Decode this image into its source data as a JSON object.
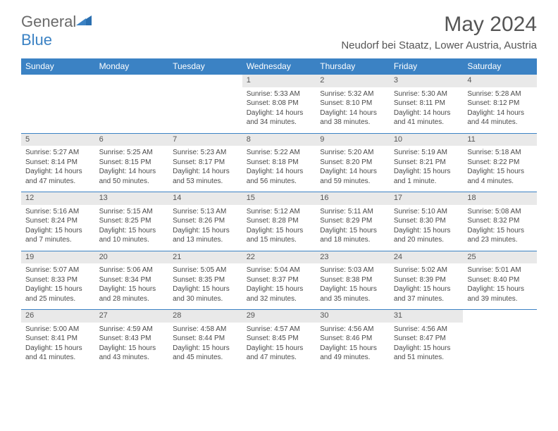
{
  "logo": {
    "text_a": "General",
    "text_b": "Blue"
  },
  "title": "May 2024",
  "location": "Neudorf bei Staatz, Lower Austria, Austria",
  "header_color": "#3b82c4",
  "daynum_bg": "#e9e9e9",
  "text_color": "#4a4a4a",
  "weekdays": [
    "Sunday",
    "Monday",
    "Tuesday",
    "Wednesday",
    "Thursday",
    "Friday",
    "Saturday"
  ],
  "weeks": [
    {
      "nums": [
        "",
        "",
        "",
        "1",
        "2",
        "3",
        "4"
      ],
      "cells": [
        null,
        null,
        null,
        {
          "sunrise": "Sunrise: 5:33 AM",
          "sunset": "Sunset: 8:08 PM",
          "dl1": "Daylight: 14 hours",
          "dl2": "and 34 minutes."
        },
        {
          "sunrise": "Sunrise: 5:32 AM",
          "sunset": "Sunset: 8:10 PM",
          "dl1": "Daylight: 14 hours",
          "dl2": "and 38 minutes."
        },
        {
          "sunrise": "Sunrise: 5:30 AM",
          "sunset": "Sunset: 8:11 PM",
          "dl1": "Daylight: 14 hours",
          "dl2": "and 41 minutes."
        },
        {
          "sunrise": "Sunrise: 5:28 AM",
          "sunset": "Sunset: 8:12 PM",
          "dl1": "Daylight: 14 hours",
          "dl2": "and 44 minutes."
        }
      ]
    },
    {
      "nums": [
        "5",
        "6",
        "7",
        "8",
        "9",
        "10",
        "11"
      ],
      "cells": [
        {
          "sunrise": "Sunrise: 5:27 AM",
          "sunset": "Sunset: 8:14 PM",
          "dl1": "Daylight: 14 hours",
          "dl2": "and 47 minutes."
        },
        {
          "sunrise": "Sunrise: 5:25 AM",
          "sunset": "Sunset: 8:15 PM",
          "dl1": "Daylight: 14 hours",
          "dl2": "and 50 minutes."
        },
        {
          "sunrise": "Sunrise: 5:23 AM",
          "sunset": "Sunset: 8:17 PM",
          "dl1": "Daylight: 14 hours",
          "dl2": "and 53 minutes."
        },
        {
          "sunrise": "Sunrise: 5:22 AM",
          "sunset": "Sunset: 8:18 PM",
          "dl1": "Daylight: 14 hours",
          "dl2": "and 56 minutes."
        },
        {
          "sunrise": "Sunrise: 5:20 AM",
          "sunset": "Sunset: 8:20 PM",
          "dl1": "Daylight: 14 hours",
          "dl2": "and 59 minutes."
        },
        {
          "sunrise": "Sunrise: 5:19 AM",
          "sunset": "Sunset: 8:21 PM",
          "dl1": "Daylight: 15 hours",
          "dl2": "and 1 minute."
        },
        {
          "sunrise": "Sunrise: 5:18 AM",
          "sunset": "Sunset: 8:22 PM",
          "dl1": "Daylight: 15 hours",
          "dl2": "and 4 minutes."
        }
      ]
    },
    {
      "nums": [
        "12",
        "13",
        "14",
        "15",
        "16",
        "17",
        "18"
      ],
      "cells": [
        {
          "sunrise": "Sunrise: 5:16 AM",
          "sunset": "Sunset: 8:24 PM",
          "dl1": "Daylight: 15 hours",
          "dl2": "and 7 minutes."
        },
        {
          "sunrise": "Sunrise: 5:15 AM",
          "sunset": "Sunset: 8:25 PM",
          "dl1": "Daylight: 15 hours",
          "dl2": "and 10 minutes."
        },
        {
          "sunrise": "Sunrise: 5:13 AM",
          "sunset": "Sunset: 8:26 PM",
          "dl1": "Daylight: 15 hours",
          "dl2": "and 13 minutes."
        },
        {
          "sunrise": "Sunrise: 5:12 AM",
          "sunset": "Sunset: 8:28 PM",
          "dl1": "Daylight: 15 hours",
          "dl2": "and 15 minutes."
        },
        {
          "sunrise": "Sunrise: 5:11 AM",
          "sunset": "Sunset: 8:29 PM",
          "dl1": "Daylight: 15 hours",
          "dl2": "and 18 minutes."
        },
        {
          "sunrise": "Sunrise: 5:10 AM",
          "sunset": "Sunset: 8:30 PM",
          "dl1": "Daylight: 15 hours",
          "dl2": "and 20 minutes."
        },
        {
          "sunrise": "Sunrise: 5:08 AM",
          "sunset": "Sunset: 8:32 PM",
          "dl1": "Daylight: 15 hours",
          "dl2": "and 23 minutes."
        }
      ]
    },
    {
      "nums": [
        "19",
        "20",
        "21",
        "22",
        "23",
        "24",
        "25"
      ],
      "cells": [
        {
          "sunrise": "Sunrise: 5:07 AM",
          "sunset": "Sunset: 8:33 PM",
          "dl1": "Daylight: 15 hours",
          "dl2": "and 25 minutes."
        },
        {
          "sunrise": "Sunrise: 5:06 AM",
          "sunset": "Sunset: 8:34 PM",
          "dl1": "Daylight: 15 hours",
          "dl2": "and 28 minutes."
        },
        {
          "sunrise": "Sunrise: 5:05 AM",
          "sunset": "Sunset: 8:35 PM",
          "dl1": "Daylight: 15 hours",
          "dl2": "and 30 minutes."
        },
        {
          "sunrise": "Sunrise: 5:04 AM",
          "sunset": "Sunset: 8:37 PM",
          "dl1": "Daylight: 15 hours",
          "dl2": "and 32 minutes."
        },
        {
          "sunrise": "Sunrise: 5:03 AM",
          "sunset": "Sunset: 8:38 PM",
          "dl1": "Daylight: 15 hours",
          "dl2": "and 35 minutes."
        },
        {
          "sunrise": "Sunrise: 5:02 AM",
          "sunset": "Sunset: 8:39 PM",
          "dl1": "Daylight: 15 hours",
          "dl2": "and 37 minutes."
        },
        {
          "sunrise": "Sunrise: 5:01 AM",
          "sunset": "Sunset: 8:40 PM",
          "dl1": "Daylight: 15 hours",
          "dl2": "and 39 minutes."
        }
      ]
    },
    {
      "nums": [
        "26",
        "27",
        "28",
        "29",
        "30",
        "31",
        ""
      ],
      "cells": [
        {
          "sunrise": "Sunrise: 5:00 AM",
          "sunset": "Sunset: 8:41 PM",
          "dl1": "Daylight: 15 hours",
          "dl2": "and 41 minutes."
        },
        {
          "sunrise": "Sunrise: 4:59 AM",
          "sunset": "Sunset: 8:43 PM",
          "dl1": "Daylight: 15 hours",
          "dl2": "and 43 minutes."
        },
        {
          "sunrise": "Sunrise: 4:58 AM",
          "sunset": "Sunset: 8:44 PM",
          "dl1": "Daylight: 15 hours",
          "dl2": "and 45 minutes."
        },
        {
          "sunrise": "Sunrise: 4:57 AM",
          "sunset": "Sunset: 8:45 PM",
          "dl1": "Daylight: 15 hours",
          "dl2": "and 47 minutes."
        },
        {
          "sunrise": "Sunrise: 4:56 AM",
          "sunset": "Sunset: 8:46 PM",
          "dl1": "Daylight: 15 hours",
          "dl2": "and 49 minutes."
        },
        {
          "sunrise": "Sunrise: 4:56 AM",
          "sunset": "Sunset: 8:47 PM",
          "dl1": "Daylight: 15 hours",
          "dl2": "and 51 minutes."
        },
        null
      ]
    }
  ]
}
